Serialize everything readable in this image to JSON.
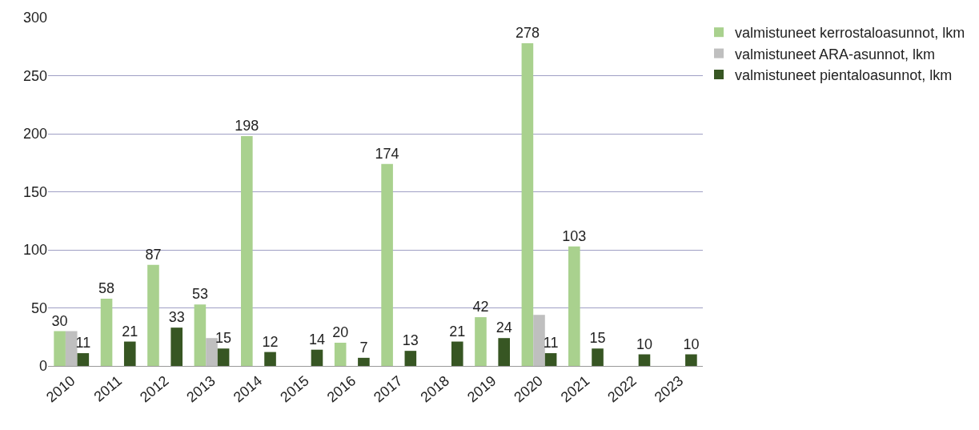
{
  "chart_data": {
    "type": "bar",
    "categories": [
      "2010",
      "2011",
      "2012",
      "2013",
      "2014",
      "2015",
      "2016",
      "2017",
      "2018",
      "2019",
      "2020",
      "2021",
      "2022",
      "2023"
    ],
    "series": [
      {
        "name": "valmistuneet kerrostaloasunnot, lkm",
        "color": "#a9d18e",
        "values": [
          30,
          58,
          87,
          53,
          198,
          null,
          20,
          174,
          null,
          42,
          278,
          103,
          null,
          null
        ],
        "value_labels": [
          "30",
          "58",
          "87",
          "53",
          "198",
          null,
          "20",
          "174",
          null,
          "42",
          "278",
          "103",
          null,
          null
        ]
      },
      {
        "name": "valmistuneet ARA-asunnot, lkm",
        "color": "#bfbfbf",
        "values": [
          30,
          null,
          null,
          24,
          null,
          null,
          null,
          null,
          null,
          null,
          44,
          null,
          null,
          null
        ]
      },
      {
        "name": "valmistuneet pientaloasunnot, lkm",
        "color": "#375623",
        "values": [
          11,
          21,
          33,
          15,
          12,
          14,
          7,
          13,
          21,
          24,
          11,
          15,
          10,
          10
        ],
        "value_labels": [
          "11",
          "21",
          "33",
          "15",
          "12",
          "14",
          "7",
          "13",
          "21",
          "24",
          "11",
          "15",
          "10",
          "10"
        ]
      }
    ],
    "ylim": [
      0,
      300
    ],
    "yticks": [
      0,
      50,
      100,
      150,
      200,
      250,
      300
    ],
    "grid": "y",
    "legend": "top right"
  }
}
